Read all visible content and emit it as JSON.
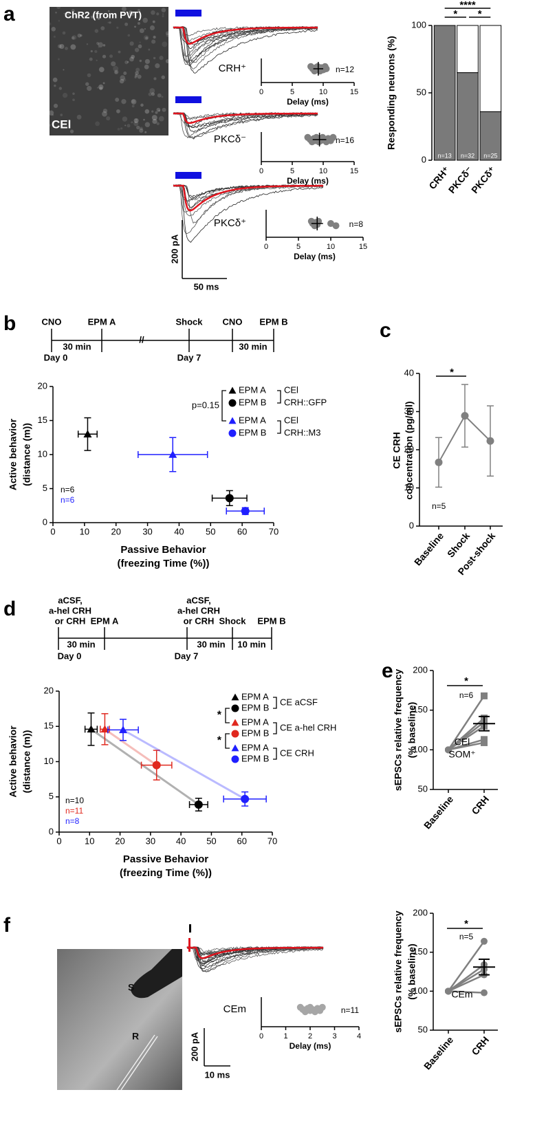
{
  "panel_labels": [
    "a",
    "b",
    "c",
    "d",
    "e",
    "f"
  ],
  "panel_a": {
    "image_title": "ChR2 (from PVT)",
    "image_label": "CEl",
    "scale_y": "200 pA",
    "scale_x": "50 ms"
  },
  "panel_b_timeline": {
    "events": [
      "CNO",
      "EPM A",
      "Shock",
      "CNO",
      "EPM B"
    ],
    "intervals": [
      "30 min",
      "30 min"
    ],
    "break": "//",
    "days": [
      "Day 0",
      "Day 7"
    ]
  },
  "panel_d_timeline": {
    "events": [
      [
        "aCSF,",
        "a-hel CRH",
        "or CRH"
      ],
      [
        "EPM A"
      ],
      [
        "aCSF,",
        "a-hel CRH",
        "or CRH"
      ],
      [
        "Shock"
      ],
      [
        "EPM B"
      ]
    ],
    "intervals": [
      "30 min",
      "30 min",
      "10 min"
    ],
    "days": [
      "Day 0",
      "Day 7"
    ]
  },
  "panel_f": {
    "image_labels": [
      "S",
      "R"
    ],
    "scale_y": "200 pA",
    "scale_x": "10 ms"
  },
  "chart_data": [
    {
      "type": "bar",
      "ylabel": "Responding neurons (%)",
      "categories": [
        "CRH⁺",
        "PKCδ⁻",
        "PKCδ⁺"
      ],
      "series": [
        {
          "color": "#7a7a7a",
          "values": [
            100,
            65,
            36
          ]
        },
        {
          "color": "#ffffff",
          "values": [
            0,
            35,
            64
          ]
        }
      ],
      "n_labels": [
        "n=13",
        "n=32",
        "n=25"
      ],
      "significance": [
        "****",
        "*",
        "*"
      ],
      "ylim": [
        0,
        100
      ],
      "yticks": [
        0,
        50,
        100
      ]
    },
    {
      "type": "strip",
      "label": "CRH⁺",
      "n_label": "n=12",
      "values": [
        8.0,
        8.3,
        8.6,
        8.8,
        9.0,
        9.1,
        9.3,
        9.5,
        9.7,
        10.0,
        10.3,
        10.5
      ],
      "mean": 9.2,
      "sd": 0.8,
      "color": "#808080",
      "xlabel": "Delay (ms)",
      "xlim": [
        0,
        15
      ],
      "xticks": [
        0,
        5,
        10,
        15
      ]
    },
    {
      "type": "strip",
      "label": "PKCδ⁻",
      "n_label": "n=16",
      "values": [
        7.5,
        7.9,
        8.2,
        8.5,
        8.7,
        8.9,
        9.1,
        9.3,
        9.4,
        9.6,
        9.9,
        10.2,
        10.5,
        10.8,
        11.2,
        11.6
      ],
      "mean": 9.4,
      "sd": 1.1,
      "color": "#808080",
      "xlabel": "Delay (ms)",
      "xlim": [
        0,
        15
      ],
      "xticks": [
        0,
        5,
        10,
        15
      ]
    },
    {
      "type": "strip",
      "label": "PKCδ⁺",
      "n_label": "n=8",
      "values": [
        7.0,
        7.2,
        7.5,
        7.7,
        7.9,
        8.1,
        10.0,
        10.8
      ],
      "mean": 7.9,
      "sd": 0.9,
      "color": "#808080",
      "xlabel": "Delay (ms)",
      "xlim": [
        0,
        15
      ],
      "xticks": [
        0,
        5,
        10,
        15
      ]
    },
    {
      "type": "scatter",
      "xlabel": [
        "Passive Behavior",
        "(freezing Time (%))"
      ],
      "ylabel": [
        "Active behavior",
        "(distance (m))"
      ],
      "xlim": [
        0,
        70
      ],
      "xticks": [
        0,
        10,
        20,
        30,
        40,
        50,
        60,
        70
      ],
      "ylim": [
        0,
        20
      ],
      "yticks": [
        0,
        5,
        10,
        15,
        20
      ],
      "p_label": "p=0.15",
      "connect": false,
      "groups": [
        {
          "label": [
            "CEl",
            "CRH::GFP"
          ],
          "n_label": "n=6",
          "series": [
            {
              "name": "EPM A",
              "color": "#000000",
              "marker": "triangle",
              "x": [
                11
              ],
              "values": [
                13
              ],
              "xerr": [
                3
              ],
              "yerr": [
                2.4
              ]
            },
            {
              "name": "EPM B",
              "color": "#000000",
              "marker": "circle",
              "x": [
                56
              ],
              "values": [
                3.6
              ],
              "xerr": [
                5.5
              ],
              "yerr": [
                1.1
              ]
            }
          ]
        },
        {
          "label": [
            "CEl",
            "CRH::M3"
          ],
          "n_label": "n=6",
          "series": [
            {
              "name": "EPM A",
              "color": "#1f1fff",
              "marker": "triangle",
              "x": [
                38
              ],
              "values": [
                10
              ],
              "xerr": [
                11
              ],
              "yerr": [
                2.5
              ]
            },
            {
              "name": "EPM B",
              "color": "#1f1fff",
              "marker": "circle",
              "x": [
                61
              ],
              "values": [
                1.7
              ],
              "xerr": [
                6
              ],
              "yerr": [
                0.5
              ]
            }
          ]
        }
      ]
    },
    {
      "type": "line",
      "ylabel": [
        "CE CRH",
        "concentration (pg/ml)"
      ],
      "categories": [
        "Baseline",
        "Shock",
        "Post-shock"
      ],
      "values": [
        16.7,
        28.9,
        22.3
      ],
      "errors": [
        6.5,
        8.2,
        9.2
      ],
      "color": "#808080",
      "n_label": "n=5",
      "significance": "*",
      "ylim": [
        0,
        40
      ],
      "yticks": [
        0,
        10,
        20,
        30,
        40
      ]
    },
    {
      "type": "scatter",
      "xlabel": [
        "Passive Behavior",
        "(freezing Time (%))"
      ],
      "ylabel": [
        "Active behavior",
        "(distance (m))"
      ],
      "xlim": [
        0,
        70
      ],
      "xticks": [
        0,
        10,
        20,
        30,
        40,
        50,
        60,
        70
      ],
      "ylim": [
        0,
        20
      ],
      "yticks": [
        0,
        5,
        10,
        15,
        20
      ],
      "stars": [
        "*",
        "*"
      ],
      "connect": true,
      "groups": [
        {
          "label": [
            "CE aCSF"
          ],
          "n_label": "n=10",
          "series": [
            {
              "name": "EPM A",
              "color": "#000000",
              "marker": "triangle",
              "x": [
                10.5
              ],
              "values": [
                14.6
              ],
              "xerr": [
                2
              ],
              "yerr": [
                2.3
              ]
            },
            {
              "name": "EPM B",
              "color": "#000000",
              "marker": "circle",
              "x": [
                45.8
              ],
              "values": [
                3.9
              ],
              "xerr": [
                3
              ],
              "yerr": [
                0.9
              ]
            }
          ]
        },
        {
          "label": [
            "CE a-hel CRH"
          ],
          "n_label": "n=11",
          "series": [
            {
              "name": "EPM A",
              "color": "#e0281e",
              "marker": "triangle",
              "x": [
                15
              ],
              "values": [
                14.6
              ],
              "xerr": [
                1.5
              ],
              "yerr": [
                2.2
              ]
            },
            {
              "name": "EPM B",
              "color": "#e0281e",
              "marker": "circle",
              "x": [
                32
              ],
              "values": [
                9.5
              ],
              "xerr": [
                5
              ],
              "yerr": [
                2.1
              ]
            }
          ]
        },
        {
          "label": [
            "CE CRH"
          ],
          "n_label": "n=8",
          "series": [
            {
              "name": "EPM A",
              "color": "#1f1fff",
              "marker": "triangle",
              "x": [
                21
              ],
              "values": [
                14.5
              ],
              "xerr": [
                5
              ],
              "yerr": [
                1.5
              ]
            },
            {
              "name": "EPM B",
              "color": "#1f1fff",
              "marker": "circle",
              "x": [
                61
              ],
              "values": [
                4.7
              ],
              "xerr": [
                7
              ],
              "yerr": [
                1
              ]
            }
          ]
        }
      ]
    },
    {
      "type": "paired",
      "ylabel": [
        "sEPSCs relative frequency",
        "(% baseline)"
      ],
      "categories": [
        "Baseline",
        "CRH"
      ],
      "marker": "square",
      "color": "#808080",
      "subjects": [
        [
          100,
          168
        ],
        [
          100,
          140
        ],
        [
          100,
          135
        ],
        [
          100,
          130
        ],
        [
          100,
          113
        ],
        [
          100,
          109
        ]
      ],
      "mean": 133,
      "sem": 9,
      "n_label": "n=6",
      "significance": "*",
      "labels": [
        "CEl",
        "SOM⁺"
      ],
      "ylim": [
        50,
        200
      ],
      "yticks": [
        50,
        100,
        150,
        200
      ]
    },
    {
      "type": "paired",
      "ylabel": [
        "sEPSCs relative frequency",
        "(% baseline)"
      ],
      "categories": [
        "Baseline",
        "CRH"
      ],
      "marker": "circle",
      "color": "#808080",
      "subjects": [
        [
          100,
          164
        ],
        [
          100,
          134
        ],
        [
          100,
          128
        ],
        [
          100,
          121
        ],
        [
          100,
          98
        ]
      ],
      "mean": 131,
      "sem": 10,
      "n_label": "n=5",
      "significance": "*",
      "labels": [
        "CEm"
      ],
      "ylim": [
        50,
        200
      ],
      "yticks": [
        50,
        100,
        150,
        200
      ]
    },
    {
      "type": "strip",
      "label": "CEm",
      "n_label": "n=11",
      "values": [
        1.6,
        1.7,
        1.8,
        1.9,
        2.0,
        2.0,
        2.1,
        2.2,
        2.3,
        2.4,
        2.5
      ],
      "color": "#a6a6a6",
      "xlabel": "Delay (ms)",
      "xlim": [
        0,
        4
      ],
      "xticks": [
        0,
        1,
        2,
        3,
        4
      ]
    }
  ]
}
